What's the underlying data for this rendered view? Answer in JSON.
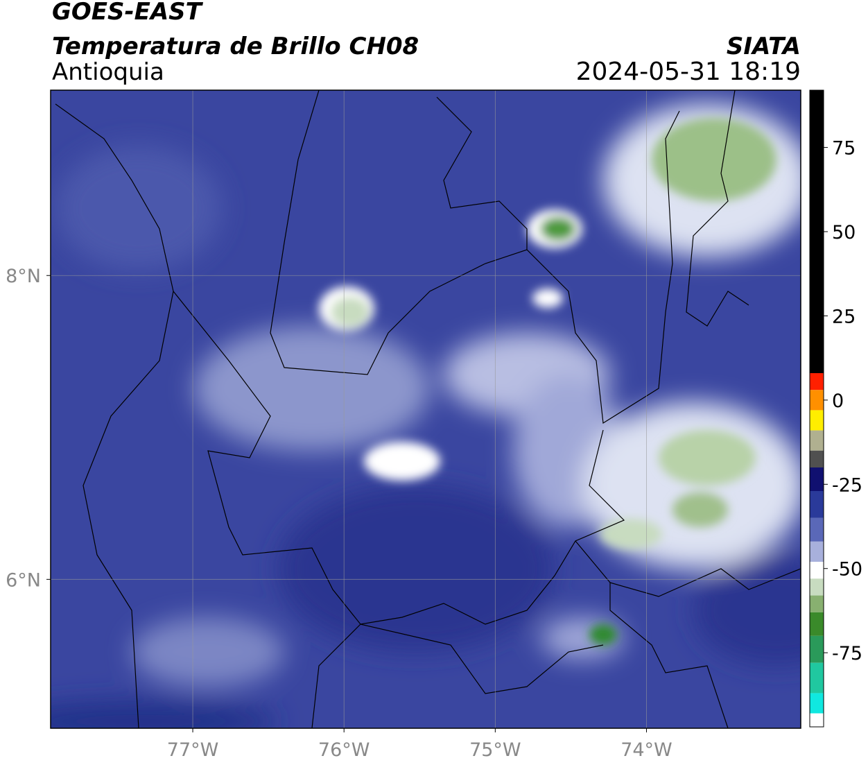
{
  "header": {
    "title": "GOES-EAST",
    "subtitle": "Temperatura de Brillo CH08",
    "region": "Antioquia",
    "source": "SIATA",
    "datetime": "2024-05-31 18:19"
  },
  "map": {
    "xlim": [
      -77.94,
      -72.98
    ],
    "ylim": [
      5.02,
      9.22
    ],
    "xticks": [
      {
        "value": -77,
        "label": "77°W"
      },
      {
        "value": -76,
        "label": "76°W"
      },
      {
        "value": -75,
        "label": "75°W"
      },
      {
        "value": -74,
        "label": "74°W"
      }
    ],
    "yticks": [
      {
        "value": 6,
        "label": "6°N"
      },
      {
        "value": 8,
        "label": "8°N"
      }
    ],
    "grid": true
  },
  "colorbar": {
    "vlim": [
      -97,
      92
    ],
    "ticks": [
      75,
      50,
      25,
      0,
      -25,
      -50,
      -75
    ],
    "bands": [
      {
        "from": 92,
        "to": 8,
        "color": "#000000"
      },
      {
        "from": 8,
        "to": 3,
        "color": "#ff2000"
      },
      {
        "from": 3,
        "to": -3,
        "color": "#ff9000"
      },
      {
        "from": -3,
        "to": -9,
        "color": "#ffee00"
      },
      {
        "from": -9,
        "to": -15,
        "color": "#b0b090"
      },
      {
        "from": -15,
        "to": -20,
        "color": "#505050"
      },
      {
        "from": -20,
        "to": -27,
        "color": "#101070"
      },
      {
        "from": -27,
        "to": -35,
        "color": "#2a3a9a"
      },
      {
        "from": -35,
        "to": -42,
        "color": "#5a68b8"
      },
      {
        "from": -42,
        "to": -48,
        "color": "#a8b0dc"
      },
      {
        "from": -48,
        "to": -53,
        "color": "#ffffff"
      },
      {
        "from": -53,
        "to": -58,
        "color": "#c8dcc0"
      },
      {
        "from": -58,
        "to": -63,
        "color": "#88b070"
      },
      {
        "from": -63,
        "to": -70,
        "color": "#3a8a2a"
      },
      {
        "from": -70,
        "to": -78,
        "color": "#2a9a5a"
      },
      {
        "from": -78,
        "to": -87,
        "color": "#20c8a0"
      },
      {
        "from": -87,
        "to": -93,
        "color": "#10e8e0"
      },
      {
        "from": -93,
        "to": -97,
        "color": "#ffffff"
      }
    ]
  }
}
